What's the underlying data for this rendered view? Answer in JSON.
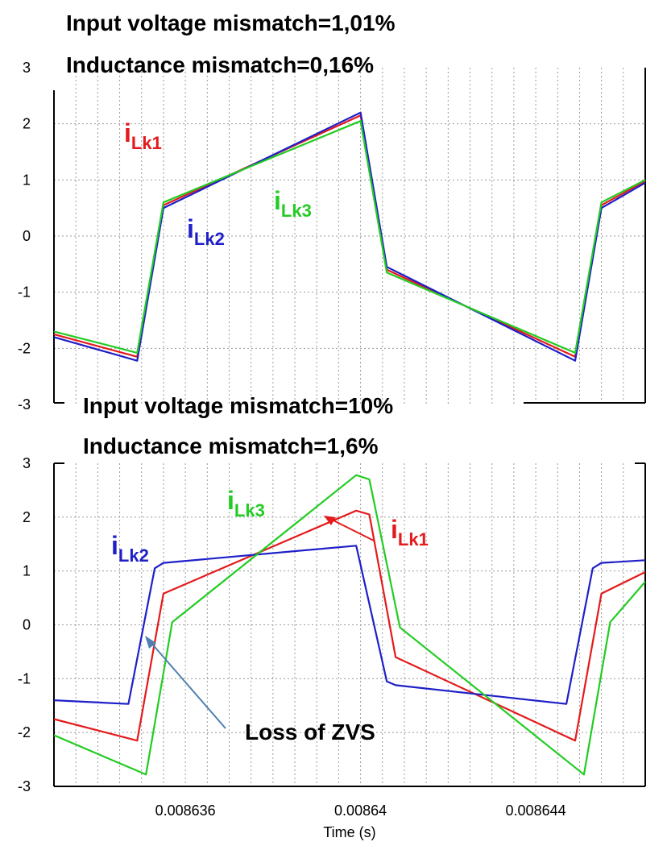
{
  "colors": {
    "iLk1": "#e41a1c",
    "iLk2": "#1f1fc8",
    "iLk3": "#22cc22",
    "arrow": "#4f7fb0"
  },
  "xaxis": {
    "label": "Time (s)",
    "ticks": [
      0.008636,
      0.00864,
      0.008644
    ],
    "tick_labels": [
      "0.008636",
      "0.00864",
      "0.008644"
    ],
    "range": [
      0.008633,
      0.0086465
    ]
  },
  "chart_data": [
    {
      "type": "line",
      "title_lines": [
        "Input voltage mismatch=1,01%",
        "Inductance mismatch=0,16%"
      ],
      "ylim": [
        -3,
        3
      ],
      "y_ticks": [
        3,
        2,
        1,
        0,
        -1,
        -2,
        -3
      ],
      "grid": true,
      "series": [
        {
          "name": "iLk1",
          "label_main": "i",
          "label_sub": "Lk1",
          "x": [
            0.008633,
            0.0086349,
            0.0086355,
            0.00864,
            0.0086406,
            0.0086449,
            0.0086455,
            0.0086465
          ],
          "y": [
            -1.75,
            -2.15,
            0.55,
            2.15,
            -0.6,
            -2.15,
            0.55,
            0.98
          ]
        },
        {
          "name": "iLk2",
          "label_main": "i",
          "label_sub": "Lk2",
          "x": [
            0.008633,
            0.0086349,
            0.0086355,
            0.00864,
            0.0086406,
            0.0086449,
            0.0086455,
            0.0086465
          ],
          "y": [
            -1.8,
            -2.22,
            0.5,
            2.2,
            -0.55,
            -2.22,
            0.5,
            0.95
          ]
        },
        {
          "name": "iLk3",
          "label_main": "i",
          "label_sub": "Lk3",
          "x": [
            0.008633,
            0.0086349,
            0.0086355,
            0.00864,
            0.0086406,
            0.0086449,
            0.0086455,
            0.0086465
          ],
          "y": [
            -1.7,
            -2.08,
            0.6,
            2.05,
            -0.65,
            -2.08,
            0.6,
            1.0
          ]
        }
      ]
    },
    {
      "type": "line",
      "title_lines": [
        "Input voltage mismatch=10%",
        "Inductance mismatch=1,6%"
      ],
      "ylim": [
        -3,
        3
      ],
      "y_ticks": [
        3,
        2,
        1,
        0,
        -1,
        -2,
        -3
      ],
      "grid": true,
      "annotation": "Loss of ZVS",
      "series": [
        {
          "name": "iLk1",
          "label_main": "i",
          "label_sub": "Lk1",
          "x": [
            0.008633,
            0.0086349,
            0.0086355,
            0.0086399,
            0.0086402,
            0.0086408,
            0.0086449,
            0.0086455,
            0.0086465
          ],
          "y": [
            -1.75,
            -2.15,
            0.58,
            2.12,
            2.05,
            -0.6,
            -2.15,
            0.58,
            0.98
          ]
        },
        {
          "name": "iLk2",
          "label_main": "i",
          "label_sub": "Lk2",
          "x": [
            0.008633,
            0.0086347,
            0.0086353,
            0.0086355,
            0.0086399,
            0.0086406,
            0.0086408,
            0.0086447,
            0.0086453,
            0.0086455,
            0.0086465
          ],
          "y": [
            -1.4,
            -1.47,
            1.05,
            1.15,
            1.47,
            -1.05,
            -1.12,
            -1.47,
            1.05,
            1.15,
            1.2
          ]
        },
        {
          "name": "iLk3",
          "label_main": "i",
          "label_sub": "Lk3",
          "x": [
            0.008633,
            0.0086351,
            0.0086357,
            0.0086399,
            0.0086402,
            0.0086409,
            0.0086451,
            0.0086457,
            0.0086465
          ],
          "y": [
            -2.05,
            -2.78,
            0.05,
            2.78,
            2.7,
            -0.05,
            -2.78,
            0.05,
            0.8
          ]
        }
      ]
    }
  ]
}
